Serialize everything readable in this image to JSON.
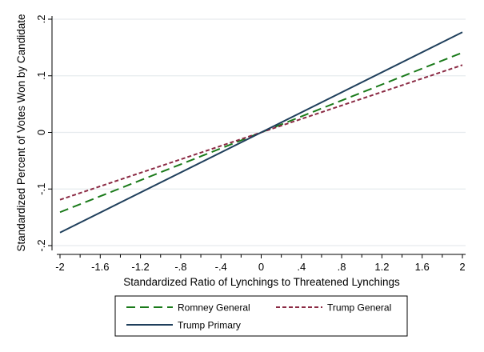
{
  "chart_data": {
    "type": "line",
    "title": "",
    "xlabel": "Standardized Ratio of Lynchings to Threatened Lynchings",
    "ylabel": "Standardized Percent of Votes Won by Candidate",
    "xlim": [
      -2,
      2
    ],
    "ylim": [
      -0.2,
      0.2
    ],
    "x_ticks": [
      -2,
      -1.6,
      -1.2,
      -0.8,
      -0.4,
      0,
      0.4,
      0.8,
      1.2,
      1.6,
      2
    ],
    "x_tick_labels": [
      "-2",
      "-1.6",
      "-1.2",
      "-.8",
      "-.4",
      "0",
      ".4",
      ".8",
      "1.2",
      "1.6",
      "2"
    ],
    "y_ticks": [
      -0.2,
      -0.1,
      0,
      0.1,
      0.2
    ],
    "y_tick_labels": [
      "-.2",
      "-.1",
      "0",
      ".1",
      ".2"
    ],
    "grid": "horizontal",
    "legend": "bottom",
    "series": [
      {
        "name": "Romney General",
        "x": [
          -2,
          2
        ],
        "y": [
          -0.141,
          0.141
        ],
        "color": "#1a7a1a",
        "dash": "long-dash"
      },
      {
        "name": "Trump General",
        "x": [
          -2,
          2
        ],
        "y": [
          -0.119,
          0.119
        ],
        "color": "#8b2a44",
        "dash": "short-dash"
      },
      {
        "name": "Trump Primary",
        "x": [
          -2,
          2
        ],
        "y": [
          -0.177,
          0.177
        ],
        "color": "#1f3f5c",
        "dash": "solid"
      }
    ]
  }
}
